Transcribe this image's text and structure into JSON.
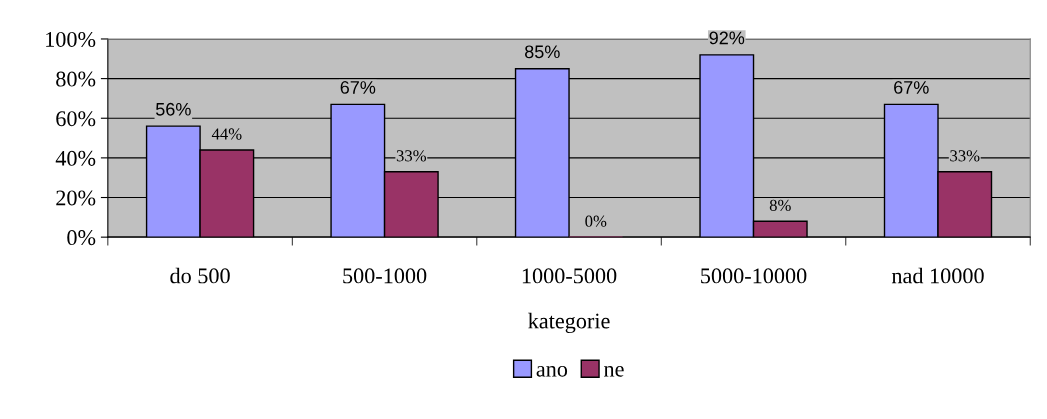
{
  "chart_data": {
    "type": "bar",
    "xlabel": "kategorie",
    "categories": [
      "do 500",
      "500-1000",
      "1000-5000",
      "5000-10000",
      "nad 10000"
    ],
    "series": [
      {
        "name": "ano",
        "color": "#9999ff",
        "values": [
          56,
          67,
          85,
          92,
          67
        ],
        "value_labels": [
          "56%",
          "67%",
          "85%",
          "92%",
          "67%"
        ]
      },
      {
        "name": "ne",
        "color": "#993366",
        "values": [
          44,
          33,
          0,
          8,
          33
        ],
        "value_labels": [
          "44%",
          "33%",
          "0%",
          "8%",
          "33%"
        ]
      }
    ],
    "ylim": [
      0,
      100
    ],
    "yticks": [
      {
        "value": 0,
        "label": "0%"
      },
      {
        "value": 20,
        "label": "20%"
      },
      {
        "value": 40,
        "label": "40%"
      },
      {
        "value": 60,
        "label": "60%"
      },
      {
        "value": 80,
        "label": "80%"
      },
      {
        "value": 100,
        "label": "100%"
      }
    ],
    "grid": "y",
    "legend": "bottom"
  }
}
